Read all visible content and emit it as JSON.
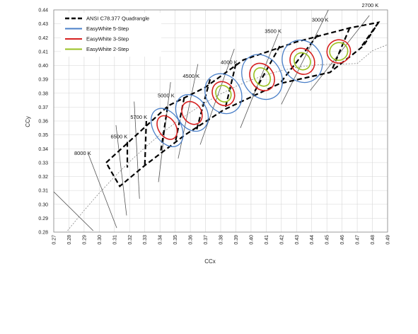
{
  "chart_data": {
    "type": "line",
    "title": "",
    "xlabel": "CCx",
    "ylabel": "CCy",
    "xlim": [
      0.27,
      0.49
    ],
    "ylim": [
      0.28,
      0.44
    ],
    "x_ticks": [
      0.27,
      0.28,
      0.29,
      0.3,
      0.31,
      0.32,
      0.33,
      0.34,
      0.35,
      0.36,
      0.37,
      0.38,
      0.39,
      0.4,
      0.41,
      0.42,
      0.43,
      0.44,
      0.45,
      0.46,
      0.47,
      0.48,
      0.49
    ],
    "x_tick_labels": [
      "0.27",
      "0.28",
      "0.29",
      "0.30",
      "0.31",
      "0.32",
      "0.33",
      "0.34",
      "0.35",
      "0.36",
      "0.37",
      "0.38",
      "0.39",
      "0.40",
      "0.41",
      "0.42",
      "0.43",
      "0.44",
      "0.45",
      "0.46",
      "0.47",
      "0.48",
      "0.49"
    ],
    "y_ticks": [
      0.28,
      0.29,
      0.3,
      0.31,
      0.32,
      0.33,
      0.34,
      0.35,
      0.36,
      0.37,
      0.38,
      0.39,
      0.4,
      0.41,
      0.42,
      0.43,
      0.44
    ],
    "y_tick_labels": [
      "0.28",
      "0.29",
      "0.30",
      "0.31",
      "0.32",
      "0.33",
      "0.34",
      "0.35",
      "0.36",
      "0.37",
      "0.38",
      "0.39",
      "0.40",
      "0.41",
      "0.42",
      "0.43",
      "0.44"
    ],
    "grid": true,
    "legend_position": "top-left",
    "legend": [
      {
        "label": "ANSI C78.377 Quadrangle",
        "color": "#000000",
        "style": "dashed"
      },
      {
        "label": "EasyWhite 5-Step",
        "color": "#4a7fc8",
        "style": "solid"
      },
      {
        "label": "EasyWhite 3-Step",
        "color": "#d62020",
        "style": "solid"
      },
      {
        "label": "EasyWhite 2-Step",
        "color": "#99c020",
        "style": "solid"
      }
    ],
    "planckian_locus": [
      [
        0.27,
        0.2681
      ],
      [
        0.28,
        0.2823
      ],
      [
        0.29,
        0.2956
      ],
      [
        0.3,
        0.3081
      ],
      [
        0.31,
        0.3198
      ],
      [
        0.32,
        0.3307
      ],
      [
        0.33,
        0.3408
      ],
      [
        0.34,
        0.3501
      ],
      [
        0.35,
        0.3586
      ],
      [
        0.36,
        0.3663
      ],
      [
        0.37,
        0.3733
      ],
      [
        0.38,
        0.3795
      ],
      [
        0.39,
        0.3849
      ],
      [
        0.4,
        0.3895
      ],
      [
        0.41,
        0.3933
      ],
      [
        0.42,
        0.3963
      ],
      [
        0.43,
        0.3986
      ],
      [
        0.44,
        0.4001
      ],
      [
        0.45,
        0.4008
      ],
      [
        0.46,
        0.401
      ],
      [
        0.47,
        0.4014
      ],
      [
        0.48,
        0.4106
      ],
      [
        0.49,
        0.415
      ]
    ],
    "ansi_outline": [
      [
        0.3045,
        0.33
      ],
      [
        0.3455,
        0.371
      ],
      [
        0.3695,
        0.384
      ],
      [
        0.395,
        0.404
      ],
      [
        0.43,
        0.417
      ],
      [
        0.465,
        0.427
      ],
      [
        0.484,
        0.431
      ],
      [
        0.474,
        0.414
      ],
      [
        0.452,
        0.395
      ],
      [
        0.419,
        0.387
      ],
      [
        0.382,
        0.368
      ],
      [
        0.3565,
        0.35
      ],
      [
        0.33,
        0.328
      ],
      [
        0.3135,
        0.313
      ],
      [
        0.3045,
        0.33
      ]
    ],
    "ansi_dividers": [
      [
        [
          0.3185,
          0.345
        ],
        [
          0.3185,
          0.3265
        ]
      ],
      [
        [
          0.331,
          0.36
        ],
        [
          0.33,
          0.328
        ]
      ],
      [
        [
          0.345,
          0.37
        ],
        [
          0.3405,
          0.338
        ]
      ],
      [
        [
          0.356,
          0.377
        ],
        [
          0.35,
          0.344
        ]
      ],
      [
        [
          0.373,
          0.39
        ],
        [
          0.364,
          0.353
        ]
      ],
      [
        [
          0.39,
          0.401
        ],
        [
          0.383,
          0.369
        ]
      ],
      [
        [
          0.419,
          0.414
        ],
        [
          0.401,
          0.3785
        ]
      ],
      [
        [
          0.444,
          0.422
        ],
        [
          0.419,
          0.387
        ]
      ],
      [
        [
          0.465,
          0.427
        ],
        [
          0.453,
          0.396
        ]
      ],
      [
        [
          0.484,
          0.431
        ],
        [
          0.473,
          0.414
        ]
      ]
    ],
    "cct_lines": [
      {
        "label": "8000 K",
        "label_pos": [
          0.2835,
          0.3355
        ],
        "line": [
          [
            0.2925,
            0.337
          ],
          [
            0.3115,
            0.283
          ]
        ]
      },
      {
        "label": "6500 K",
        "label_pos": [
          0.3075,
          0.3475
        ],
        "line": [
          [
            0.311,
            0.357
          ],
          [
            0.318,
            0.292
          ]
        ]
      },
      {
        "label": "5700 K",
        "label_pos": [
          0.3205,
          0.3615
        ],
        "line": [
          [
            0.323,
            0.374
          ],
          [
            0.3265,
            0.304
          ]
        ]
      },
      {
        "label": "5000 K",
        "label_pos": [
          0.3385,
          0.377
        ],
        "line": [
          [
            0.347,
            0.388
          ],
          [
            0.339,
            0.316
          ]
        ]
      },
      {
        "label": "4500 K",
        "label_pos": [
          0.355,
          0.391
        ],
        "line": [
          [
            0.365,
            0.401
          ],
          [
            0.352,
            0.333
          ]
        ]
      },
      {
        "label": "4000 K",
        "label_pos": [
          0.38,
          0.401
        ],
        "line": [
          [
            0.389,
            0.412
          ],
          [
            0.3665,
            0.343
          ]
        ]
      },
      {
        "label": "3500 K",
        "label_pos": [
          0.409,
          0.4235
        ],
        "line": [
          [
            0.418,
            0.423
          ],
          [
            0.393,
            0.355
          ]
        ]
      },
      {
        "label": "3000 K",
        "label_pos": [
          0.44,
          0.4315
        ],
        "line": [
          [
            0.451,
            0.44
          ],
          [
            0.42,
            0.372
          ]
        ]
      },
      {
        "label": "2700 K",
        "label_pos": [
          0.473,
          0.442
        ],
        "line": [
          [
            0.478,
            0.436
          ],
          [
            0.439,
            0.382
          ]
        ]
      },
      {
        "label": "",
        "label_pos": [
          0,
          0
        ],
        "line": [
          [
            0.27,
            0.309
          ],
          [
            0.296,
            0.281
          ]
        ]
      }
    ],
    "ellipses": [
      {
        "cct": "5000 K",
        "center": [
          0.3447,
          0.3553
        ],
        "steps": {
          "5-Step": [
            0.009,
            0.015
          ],
          "3-Step": [
            0.0058,
            0.0092
          ],
          "2-Step": [
            0,
            0
          ]
        }
      },
      {
        "cct": "4500 K",
        "center": [
          0.3611,
          0.3658
        ],
        "steps": {
          "5-Step": [
            0.0098,
            0.014
          ],
          "3-Step": [
            0.0062,
            0.0087
          ],
          "2-Step": [
            0,
            0
          ]
        }
      },
      {
        "cct": "4000 K",
        "center": [
          0.3818,
          0.3797
        ],
        "steps": {
          "5-Step": [
            0.0115,
            0.015
          ],
          "3-Step": [
            0.007,
            0.009
          ],
          "2-Step": [
            0.0048,
            0.0062
          ]
        }
      },
      {
        "cct": "3500 K",
        "center": [
          0.4073,
          0.3917
        ],
        "steps": {
          "5-Step": [
            0.0125,
            0.017
          ],
          "3-Step": [
            0.0076,
            0.0104
          ],
          "2-Step": [
            0.005,
            0.007
          ]
        }
      },
      {
        "cct": "3000 K",
        "center": [
          0.4338,
          0.403
        ],
        "steps": {
          "5-Step": [
            0.0128,
            0.0157
          ],
          "3-Step": [
            0.0078,
            0.0097
          ],
          "2-Step": [
            0.0052,
            0.0063
          ]
        }
      },
      {
        "cct": "2700 K",
        "center": [
          0.4578,
          0.4101
        ],
        "steps": {
          "5-Step": [
            0,
            0
          ],
          "3-Step": [
            0.0078,
            0.0083
          ],
          "2-Step": [
            0.006,
            0.0063
          ]
        }
      }
    ]
  }
}
